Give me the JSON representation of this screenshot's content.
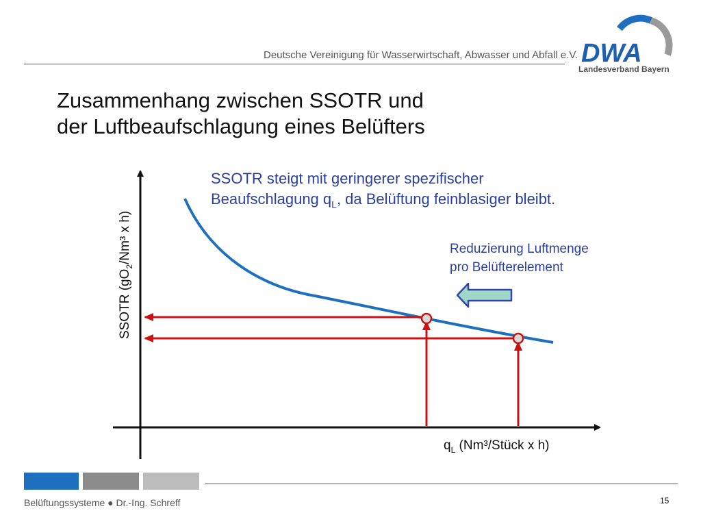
{
  "header": {
    "org_name": "Deutsche Vereinigung für Wasserwirtschaft, Abwasser und Abfall e.V.",
    "logo_text": "DWA",
    "logo_subtitle": "Landesverband Bayern"
  },
  "slide": {
    "title_line1": "Zusammenhang zwischen SSOTR und",
    "title_line2": "der Luftbeaufschlagung eines Belüfters"
  },
  "diagram": {
    "annotation_main_line1": "SSOTR steigt mit geringerer spezifischer",
    "annotation_main_line2_pre": "Beaufschlagung q",
    "annotation_main_line2_sub": "L",
    "annotation_main_line2_post": ", da Belüftung feinblasiger bleibt.",
    "annotation_reduce_line1": "Reduzierung Luftmenge",
    "annotation_reduce_line2": "pro Belüfterelement",
    "x_axis_label_q": "q",
    "x_axis_label_sub": "L",
    "x_axis_label_rest": " (Nm³/Stück x h)",
    "y_axis_label_pre": "SSOTR  (gO",
    "y_axis_label_sub": "2",
    "y_axis_label_post": "/Nm³ x h)",
    "colors": {
      "curve": "#1f6fbf",
      "guide_arrows": "#cc1111",
      "reduce_arrow_fill": "#9fd8c8",
      "reduce_arrow_stroke": "#3344aa",
      "annotation_text": "#2a3fa0"
    }
  },
  "footer": {
    "left_text": "Belüftungssysteme ● Dr.-Ing. Schreff",
    "page_number": "15",
    "block_colors": [
      "#1f6fbf",
      "#8c8c8c",
      "#bcbcbc"
    ]
  }
}
